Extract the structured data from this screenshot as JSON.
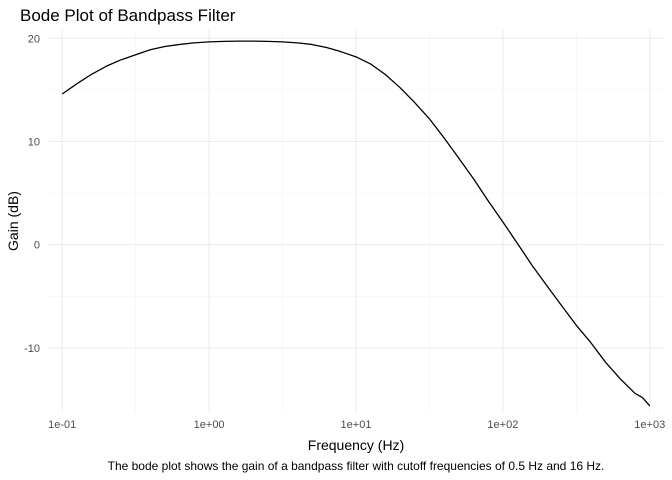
{
  "chart_data": {
    "type": "line",
    "title": "Bode Plot of Bandpass Filter",
    "xlabel": "Frequency (Hz)",
    "ylabel": "Gain (dB)",
    "caption": "The bode plot shows the gain of a bandpass filter with cutoff frequencies of 0.5 Hz and 16 Hz.",
    "x_scale": "log10",
    "xlim": [
      0.08,
      1250
    ],
    "ylim": [
      -16.2,
      20.8
    ],
    "grid": true,
    "x_ticks": [
      0.1,
      1,
      10,
      100,
      1000
    ],
    "x_tick_labels": [
      "1e-01",
      "1e+00",
      "1e+01",
      "1e+02",
      "1e+03"
    ],
    "y_ticks": [
      -10,
      0,
      10,
      20
    ],
    "y_tick_labels": [
      "-10",
      "0",
      "10",
      "20"
    ],
    "series": [
      {
        "color": "#000000",
        "x": [
          0.1,
          0.126,
          0.158,
          0.2,
          0.25,
          0.316,
          0.4,
          0.5,
          0.63,
          0.79,
          1,
          1.26,
          1.58,
          2,
          2.5,
          3.16,
          4,
          5,
          6.3,
          7.9,
          10,
          12.6,
          15.8,
          20,
          25,
          31.6,
          40,
          50,
          63,
          79,
          100,
          126,
          158,
          200,
          251,
          316,
          398,
          501,
          631,
          794,
          891,
          1000
        ],
        "y": [
          14.6,
          15.6,
          16.5,
          17.3,
          17.9,
          18.4,
          18.9,
          19.2,
          19.4,
          19.55,
          19.65,
          19.7,
          19.72,
          19.72,
          19.7,
          19.65,
          19.55,
          19.4,
          19.1,
          18.7,
          18.2,
          17.5,
          16.5,
          15.2,
          13.8,
          12.2,
          10.3,
          8.4,
          6.4,
          4.3,
          2.2,
          0.1,
          -2.0,
          -4.0,
          -5.9,
          -7.8,
          -9.5,
          -11.4,
          -13.0,
          -14.4,
          -14.8,
          -15.6
        ]
      }
    ]
  }
}
